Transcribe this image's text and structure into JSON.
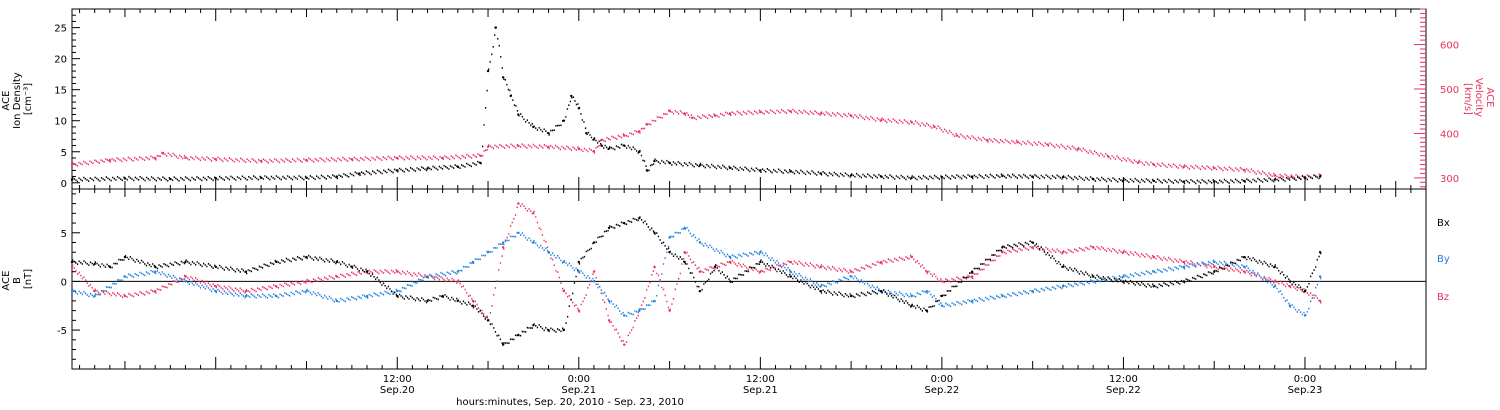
{
  "colors": {
    "black": "#000000",
    "pink": "#e8325f",
    "blue": "#1f80e0"
  },
  "xaxis": {
    "title": "hours:minutes, Sep. 20, 2010 - Sep. 23, 2010",
    "range_hours": [
      -9.5,
      80
    ],
    "ticks": [
      {
        "h": 12,
        "time": "12:00",
        "date": "Sep.20"
      },
      {
        "h": 24,
        "time": "0:00",
        "date": "Sep.21"
      },
      {
        "h": 36,
        "time": "12:00",
        "date": "Sep.21"
      },
      {
        "h": 48,
        "time": "0:00",
        "date": "Sep.22"
      },
      {
        "h": 60,
        "time": "12:00",
        "date": "Sep.22"
      },
      {
        "h": 72,
        "time": "0:00",
        "date": "Sep.23"
      }
    ]
  },
  "chart_data": [
    {
      "type": "scatter",
      "panel": "plasma",
      "left_axis": {
        "label_lines": [
          "ACE",
          "Ion Density",
          "[cm⁻³]"
        ],
        "range": [
          -1,
          28
        ],
        "ticks": [
          0,
          5,
          10,
          15,
          20,
          25
        ]
      },
      "right_axis": {
        "label_lines": [
          "ACE",
          "Velocity",
          "[km/s]"
        ],
        "range": [
          275,
          680
        ],
        "ticks": [
          300,
          400,
          500,
          600
        ]
      },
      "series": [
        {
          "axis": "left",
          "color": "black",
          "x": [
            -9.5,
            -6,
            -3,
            0,
            3,
            6,
            8,
            9.5,
            12,
            14,
            16,
            17.5,
            18,
            18.5,
            19,
            19.5,
            20,
            21,
            22,
            23,
            23.5,
            24,
            24.5,
            25,
            25.5,
            26,
            27,
            28,
            28.5,
            29,
            30,
            32,
            34,
            36,
            38,
            40,
            42,
            44,
            46,
            48,
            50,
            52,
            54,
            56,
            58,
            60,
            62,
            64,
            66,
            68,
            70,
            72,
            73
          ],
          "y": [
            0.5,
            0.7,
            0.6,
            0.7,
            0.8,
            0.8,
            1.0,
            1.5,
            2.0,
            2.3,
            2.6,
            3.2,
            18,
            25,
            17,
            14,
            11,
            9,
            8,
            10,
            14,
            12,
            8,
            7,
            6,
            5.5,
            6,
            5,
            2,
            3.5,
            3.2,
            2.8,
            2.4,
            2.0,
            1.8,
            1.5,
            1.2,
            1.0,
            0.8,
            0.9,
            1.0,
            1.1,
            1.0,
            0.9,
            0.6,
            0.4,
            0.3,
            0.2,
            0.2,
            0.3,
            0.5,
            0.8,
            1.0
          ]
        },
        {
          "axis": "right",
          "color": "pink",
          "x": [
            -9.5,
            -7,
            -4,
            -3.5,
            -2,
            0,
            3,
            6,
            9,
            12,
            15,
            17.5,
            18,
            20,
            22,
            24,
            25,
            25.5,
            27,
            28,
            28.5,
            30,
            31,
            31.5,
            33,
            34,
            36,
            38,
            40,
            42,
            44,
            46,
            47.5,
            49,
            51,
            53,
            55,
            57,
            59,
            61,
            62,
            64,
            66,
            68,
            70,
            72,
            73
          ],
          "y": [
            330,
            340,
            345,
            355,
            345,
            342,
            338,
            340,
            342,
            345,
            345,
            350,
            370,
            372,
            370,
            365,
            360,
            385,
            395,
            405,
            420,
            450,
            445,
            435,
            440,
            445,
            448,
            450,
            445,
            440,
            430,
            425,
            415,
            395,
            385,
            380,
            375,
            365,
            348,
            335,
            330,
            325,
            322,
            318,
            305,
            302,
            305
          ]
        }
      ]
    },
    {
      "type": "scatter",
      "panel": "magnetic_field",
      "left_axis": {
        "label_lines": [
          "ACE",
          "B",
          "[nT]"
        ],
        "range": [
          -9,
          9.5
        ],
        "ticks": [
          -5,
          0,
          5
        ]
      },
      "legend": [
        "Bx",
        "By",
        "Bz"
      ],
      "series": [
        {
          "name": "Bx",
          "color": "black",
          "x": [
            -9.5,
            -8,
            -7,
            -6,
            -4,
            -2,
            0,
            2,
            4,
            6,
            8,
            9,
            10,
            12,
            14,
            15,
            16,
            17,
            18,
            19,
            20,
            21,
            22,
            23,
            24,
            25,
            26,
            27,
            28,
            29,
            30,
            31,
            32,
            33,
            34,
            36,
            38,
            40,
            42,
            44,
            46,
            47,
            48,
            50,
            52,
            54,
            56,
            58,
            60,
            62,
            64,
            66,
            68,
            70,
            71,
            72,
            73
          ],
          "y": [
            2.0,
            1.8,
            1.5,
            2.5,
            1.5,
            2.0,
            1.5,
            1.0,
            2.0,
            2.5,
            2.0,
            1.5,
            1.0,
            -1.5,
            -2.0,
            -1.5,
            -2.0,
            -2.5,
            -4.0,
            -6.5,
            -5.5,
            -4.5,
            -5.0,
            -5.0,
            2.0,
            4.0,
            5.5,
            6.0,
            6.5,
            5.0,
            3.0,
            2.0,
            -1.0,
            1.5,
            0.0,
            2.0,
            0.5,
            -1.0,
            -1.5,
            -1.0,
            -2.5,
            -3.0,
            -1.5,
            1.0,
            3.5,
            4.0,
            1.5,
            0.5,
            0.0,
            -0.5,
            0.0,
            1.0,
            2.5,
            1.5,
            0.0,
            -1.0,
            3.0
          ]
        },
        {
          "name": "By",
          "color": "blue",
          "x": [
            -9.5,
            -8,
            -6,
            -4,
            -2,
            0,
            2,
            4,
            6,
            8,
            10,
            12,
            14,
            16,
            17,
            18,
            19,
            20,
            21,
            22,
            23,
            24,
            25,
            26,
            27,
            28,
            29,
            30,
            31,
            32,
            34,
            36,
            38,
            40,
            42,
            44,
            46,
            47,
            48,
            50,
            52,
            54,
            56,
            58,
            60,
            62,
            64,
            66,
            68,
            70,
            71,
            72,
            73
          ],
          "y": [
            -1.0,
            -1.5,
            0.5,
            1.0,
            0.0,
            -1.0,
            -1.5,
            -1.5,
            -1.0,
            -2.0,
            -1.5,
            -1.0,
            0.5,
            1.0,
            2.0,
            3.0,
            4.0,
            5.0,
            4.0,
            3.0,
            2.0,
            1.0,
            0.0,
            -2.0,
            -3.5,
            -3.0,
            -2.0,
            4.5,
            5.5,
            4.0,
            2.5,
            3.0,
            1.0,
            -0.5,
            0.5,
            -1.0,
            -1.5,
            -1.0,
            -2.5,
            -2.0,
            -1.5,
            -1.0,
            -0.5,
            0.0,
            0.5,
            1.0,
            1.5,
            2.0,
            1.5,
            -0.5,
            -2.5,
            -3.5,
            0.5
          ]
        },
        {
          "name": "Bz",
          "color": "pink",
          "x": [
            -9.5,
            -8,
            -6,
            -4,
            -2,
            0,
            2,
            4,
            6,
            8,
            10,
            12,
            14,
            16,
            17,
            18,
            19,
            20,
            21,
            22,
            23,
            24,
            25,
            26,
            27,
            28,
            29,
            30,
            31,
            32,
            34,
            36,
            38,
            40,
            42,
            44,
            46,
            47,
            48,
            50,
            52,
            54,
            56,
            58,
            60,
            62,
            64,
            66,
            68,
            70,
            71,
            72,
            73
          ],
          "y": [
            1.5,
            -1.0,
            -1.5,
            -1.0,
            0.5,
            -0.5,
            -1.0,
            -0.5,
            0.0,
            0.5,
            1.0,
            1.0,
            0.5,
            0.0,
            -2.0,
            -4.0,
            3.5,
            8.0,
            7.0,
            3.0,
            -1.0,
            -3.0,
            1.0,
            -4.0,
            -6.5,
            -3.0,
            1.5,
            -3.0,
            3.0,
            1.0,
            2.0,
            1.0,
            2.0,
            1.5,
            1.0,
            2.0,
            2.5,
            1.0,
            0.0,
            0.5,
            3.0,
            3.5,
            3.0,
            3.5,
            3.0,
            2.5,
            2.0,
            1.5,
            1.0,
            0.0,
            -0.5,
            -1.0,
            -2.0
          ]
        }
      ]
    }
  ]
}
